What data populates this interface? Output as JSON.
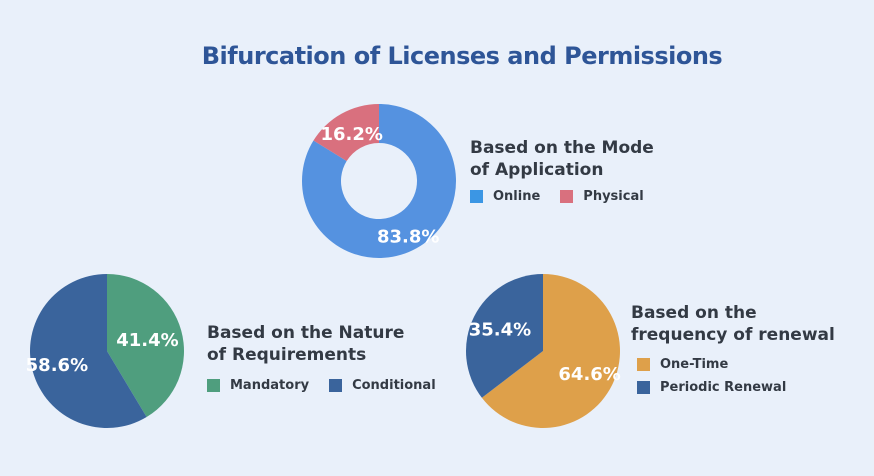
{
  "title": "Bifurcation of Licenses and Permissions",
  "chart_data": [
    {
      "type": "pie",
      "variant": "donut",
      "heading_lines": [
        "Based on the Mode",
        "of Application"
      ],
      "slices": [
        {
          "name": "Online",
          "value": 83.8,
          "label": "83.8%",
          "color": "#5592e0"
        },
        {
          "name": "Physical",
          "value": 16.2,
          "label": "16.2%",
          "color": "#d9707e"
        }
      ],
      "legend_colors": [
        "#3b96e4",
        "#d9707e"
      ]
    },
    {
      "type": "pie",
      "heading_lines": [
        "Based on the Nature",
        "of Requirements"
      ],
      "slices": [
        {
          "name": "Mandatory",
          "value": 41.4,
          "label": "41.4%",
          "color": "#4f9e7e"
        },
        {
          "name": "Conditional",
          "value": 58.6,
          "label": "58.6%",
          "color": "#3a649c"
        }
      ],
      "legend_colors": [
        "#4f9e7e",
        "#3a649c"
      ]
    },
    {
      "type": "pie",
      "heading_lines": [
        "Based on the",
        "frequency of renewal"
      ],
      "slices": [
        {
          "name": "One-Time",
          "value": 64.6,
          "label": "64.6%",
          "color": "#dea04a"
        },
        {
          "name": "Periodic Renewal",
          "value": 35.4,
          "label": "35.4%",
          "color": "#3a649c"
        }
      ],
      "legend_colors": [
        "#dea04a",
        "#3a649c"
      ]
    }
  ]
}
